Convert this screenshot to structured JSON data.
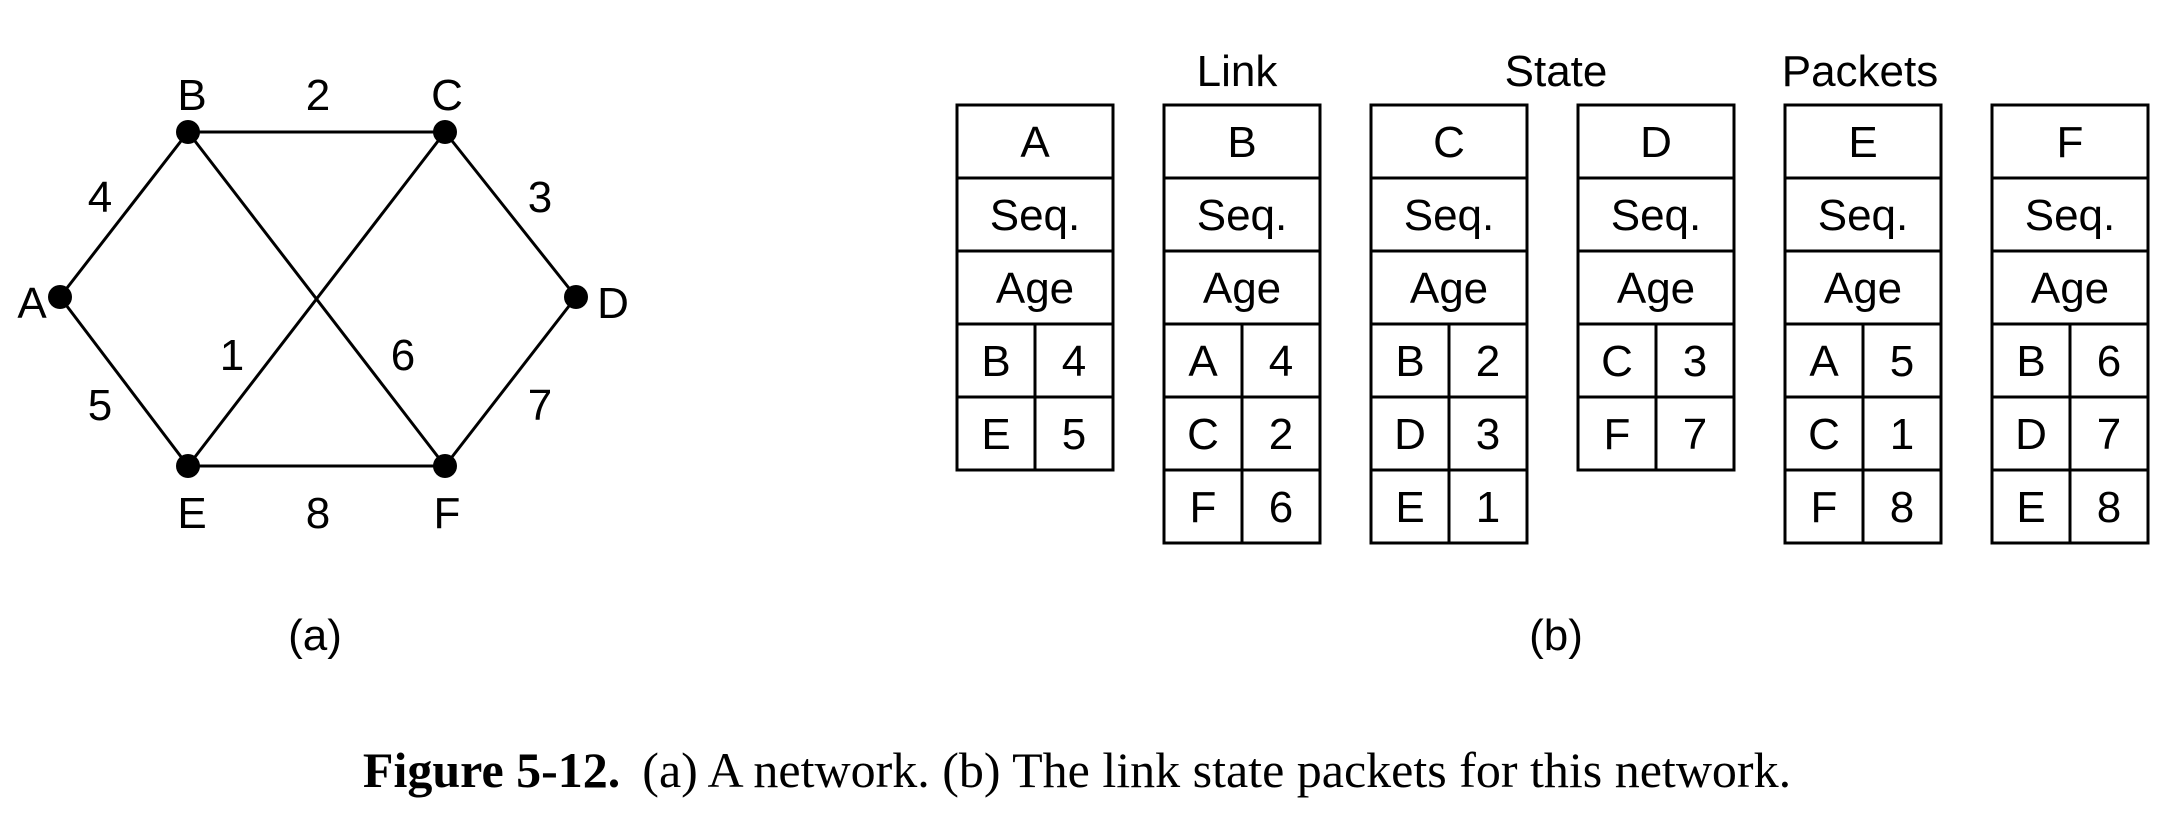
{
  "network": {
    "nodes": [
      {
        "id": "A",
        "label": "A"
      },
      {
        "id": "B",
        "label": "B"
      },
      {
        "id": "C",
        "label": "C"
      },
      {
        "id": "D",
        "label": "D"
      },
      {
        "id": "E",
        "label": "E"
      },
      {
        "id": "F",
        "label": "F"
      }
    ],
    "edges": [
      {
        "from": "A",
        "to": "B",
        "weight": "4"
      },
      {
        "from": "B",
        "to": "C",
        "weight": "2"
      },
      {
        "from": "C",
        "to": "D",
        "weight": "3"
      },
      {
        "from": "A",
        "to": "E",
        "weight": "5"
      },
      {
        "from": "C",
        "to": "E",
        "weight": "1"
      },
      {
        "from": "B",
        "to": "F",
        "weight": "6"
      },
      {
        "from": "D",
        "to": "F",
        "weight": "7"
      },
      {
        "from": "E",
        "to": "F",
        "weight": "8"
      }
    ]
  },
  "packets_heading": [
    "Link",
    "State",
    "Packets"
  ],
  "packets": [
    {
      "router": "A",
      "seq": "Seq.",
      "age": "Age",
      "rows": [
        [
          "B",
          "4"
        ],
        [
          "E",
          "5"
        ]
      ]
    },
    {
      "router": "B",
      "seq": "Seq.",
      "age": "Age",
      "rows": [
        [
          "A",
          "4"
        ],
        [
          "C",
          "2"
        ],
        [
          "F",
          "6"
        ]
      ]
    },
    {
      "router": "C",
      "seq": "Seq.",
      "age": "Age",
      "rows": [
        [
          "B",
          "2"
        ],
        [
          "D",
          "3"
        ],
        [
          "E",
          "1"
        ]
      ]
    },
    {
      "router": "D",
      "seq": "Seq.",
      "age": "Age",
      "rows": [
        [
          "C",
          "3"
        ],
        [
          "F",
          "7"
        ]
      ]
    },
    {
      "router": "E",
      "seq": "Seq.",
      "age": "Age",
      "rows": [
        [
          "A",
          "5"
        ],
        [
          "C",
          "1"
        ],
        [
          "F",
          "8"
        ]
      ]
    },
    {
      "router": "F",
      "seq": "Seq.",
      "age": "Age",
      "rows": [
        [
          "B",
          "6"
        ],
        [
          "D",
          "7"
        ],
        [
          "E",
          "8"
        ]
      ]
    }
  ],
  "panel_labels": {
    "a": "(a)",
    "b": "(b)"
  },
  "caption": {
    "bold": "Figure 5-12.",
    "text": "(a) A network. (b) The link state packets for this network."
  }
}
